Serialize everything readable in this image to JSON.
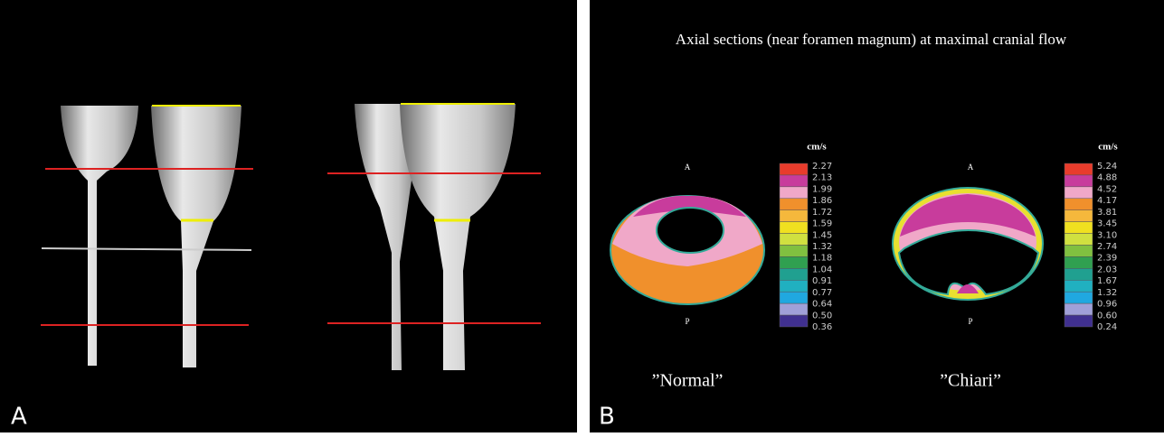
{
  "panel_a": {
    "label": "A"
  },
  "panel_b": {
    "label": "B",
    "title": "Axial sections (near foramen magnum) at maximal cranial flow",
    "sections": [
      {
        "caption": "”Normal”",
        "anterior": "A",
        "posterior": "P",
        "unit": "cm/s",
        "scale": [
          "2.27",
          "2.13",
          "1.99",
          "1.86",
          "1.72",
          "1.59",
          "1.45",
          "1.32",
          "1.18",
          "1.04",
          "0.91",
          "0.77",
          "0.64",
          "0.50",
          "0.36"
        ]
      },
      {
        "caption": "”Chiari”",
        "anterior": "A",
        "posterior": "P",
        "unit": "cm/s",
        "scale": [
          "5.24",
          "4.88",
          "4.52",
          "4.17",
          "3.81",
          "3.45",
          "3.10",
          "2.74",
          "2.39",
          "2.03",
          "1.67",
          "1.32",
          "0.96",
          "0.60",
          "0.24"
        ]
      }
    ]
  }
}
